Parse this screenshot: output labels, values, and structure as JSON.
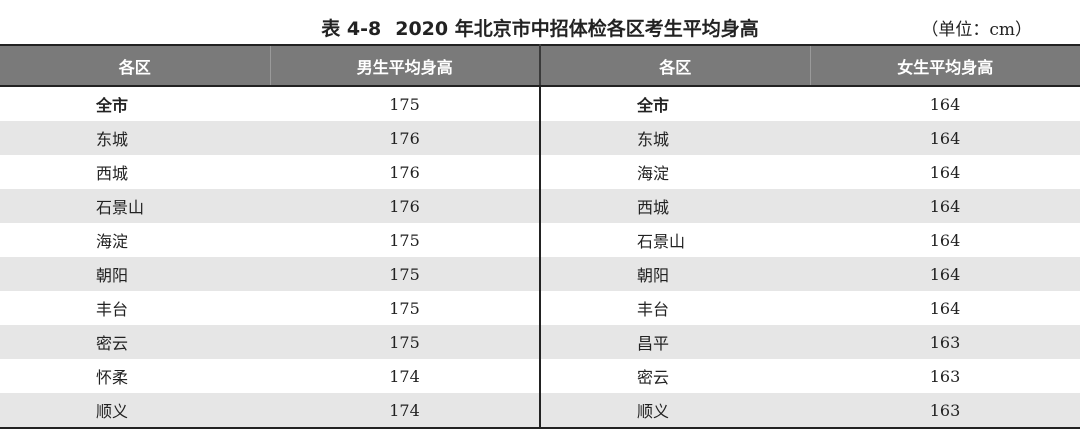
{
  "header": {
    "table_number": "表 4-8",
    "title": "2020 年北京市中招体检各区考生平均身高",
    "unit": "（单位：cm）"
  },
  "columns": {
    "male_district": "各区",
    "male_height": "男生平均身高",
    "female_district": "各区",
    "female_height": "女生平均身高"
  },
  "rows": [
    {
      "m_district": "全市",
      "m_height": "175",
      "f_district": "全市",
      "f_height": "164"
    },
    {
      "m_district": "东城",
      "m_height": "176",
      "f_district": "东城",
      "f_height": "164"
    },
    {
      "m_district": "西城",
      "m_height": "176",
      "f_district": "海淀",
      "f_height": "164"
    },
    {
      "m_district": "石景山",
      "m_height": "176",
      "f_district": "西城",
      "f_height": "164"
    },
    {
      "m_district": "海淀",
      "m_height": "175",
      "f_district": "石景山",
      "f_height": "164"
    },
    {
      "m_district": "朝阳",
      "m_height": "175",
      "f_district": "朝阳",
      "f_height": "164"
    },
    {
      "m_district": "丰台",
      "m_height": "175",
      "f_district": "丰台",
      "f_height": "164"
    },
    {
      "m_district": "密云",
      "m_height": "175",
      "f_district": "昌平",
      "f_height": "163"
    },
    {
      "m_district": "怀柔",
      "m_height": "174",
      "f_district": "密云",
      "f_height": "163"
    },
    {
      "m_district": "顺义",
      "m_height": "174",
      "f_district": "顺义",
      "f_height": "163"
    }
  ]
}
